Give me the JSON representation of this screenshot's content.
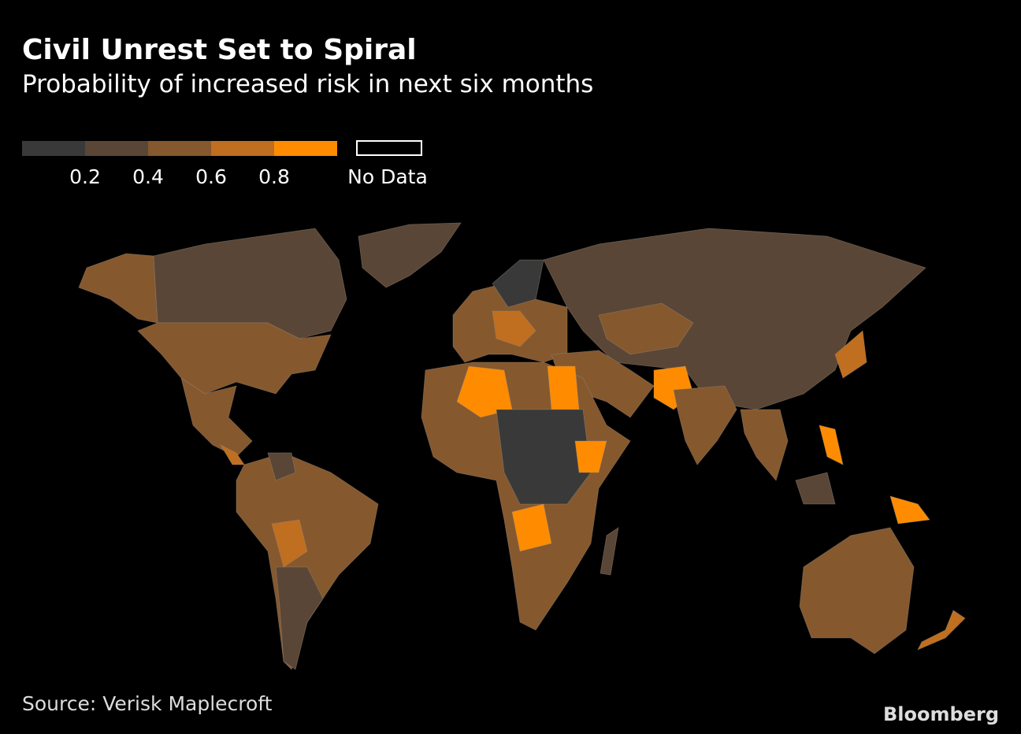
{
  "header": {
    "title": "Civil Unrest Set to Spiral",
    "subtitle": "Probability of increased risk in next six months"
  },
  "legend": {
    "colors": [
      "#393939",
      "#5a4636",
      "#85582e",
      "#c06e1f",
      "#ff8c00"
    ],
    "scale": [
      0,
      1
    ],
    "ticks": [
      0.2,
      0.4,
      0.6,
      0.8
    ],
    "no_data_label": "No Data"
  },
  "footer": {
    "source": "Source: Verisk Maplecroft",
    "brand": "Bloomberg"
  }
}
